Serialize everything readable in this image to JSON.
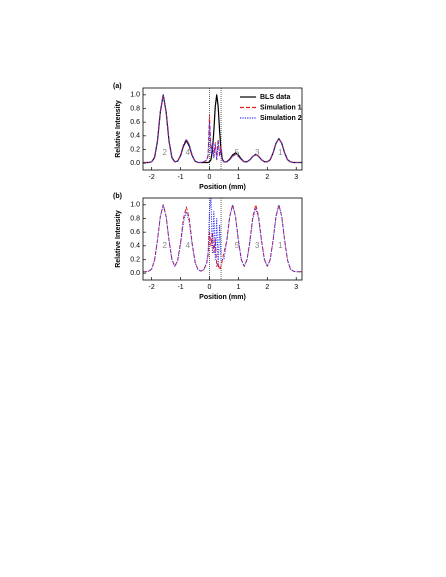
{
  "chart_data": [
    {
      "type": "line",
      "title": "(a)",
      "xlabel": "Position (mm)",
      "ylabel": "Relative Intensity",
      "xlim": [
        -2.3,
        3.2
      ],
      "ylim": [
        -0.1,
        1.1
      ],
      "xticks": [
        -2,
        -1,
        0,
        1,
        2,
        3
      ],
      "yticks": [
        {
          "value": 0,
          "label": "0.0"
        },
        0.2,
        0.4,
        0.6,
        0.8,
        {
          "value": 1,
          "label": "1.0"
        }
      ],
      "vlines": [
        0,
        0.4
      ],
      "legend": "upper right",
      "annotations": [
        "2",
        "4",
        "5",
        "3",
        "1"
      ],
      "x": [
        -2.3,
        -2.2,
        -2.1,
        -2.0,
        -1.9,
        -1.8,
        -1.7,
        -1.6,
        -1.5,
        -1.4,
        -1.3,
        -1.2,
        -1.1,
        -1.0,
        -0.9,
        -0.8,
        -0.7,
        -0.6,
        -0.5,
        -0.4,
        -0.3,
        -0.2,
        -0.1,
        -0.05,
        0,
        0.05,
        0.1,
        0.15,
        0.2,
        0.25,
        0.3,
        0.35,
        0.4,
        0.45,
        0.5,
        0.6,
        0.7,
        0.8,
        0.9,
        1.0,
        1.1,
        1.2,
        1.3,
        1.4,
        1.5,
        1.6,
        1.7,
        1.8,
        1.9,
        2.0,
        2.1,
        2.2,
        2.3,
        2.4,
        2.5,
        2.6,
        2.7,
        2.8,
        2.9,
        3.0,
        3.1,
        3.2
      ],
      "series": [
        {
          "name": "BLS data",
          "color": "#000000",
          "dash": "solid",
          "values": [
            0.01,
            0.01,
            0.01,
            0.02,
            0.08,
            0.32,
            0.75,
            1.0,
            0.75,
            0.32,
            0.08,
            0.02,
            0.03,
            0.11,
            0.25,
            0.33,
            0.25,
            0.11,
            0.03,
            0.01,
            0.01,
            0.01,
            0.01,
            0.01,
            0.02,
            0.05,
            0.18,
            0.47,
            0.83,
            1.0,
            0.83,
            0.47,
            0.18,
            0.05,
            0.02,
            0.02,
            0.06,
            0.12,
            0.15,
            0.12,
            0.06,
            0.02,
            0.02,
            0.05,
            0.1,
            0.13,
            0.1,
            0.05,
            0.02,
            0.02,
            0.05,
            0.15,
            0.29,
            0.36,
            0.29,
            0.15,
            0.05,
            0.02,
            0.01,
            0.01,
            0.01,
            0.01
          ]
        },
        {
          "name": "Simulation 1",
          "color": "#e41a1c",
          "dash": "dashed",
          "values": [
            0.01,
            0.01,
            0.01,
            0.02,
            0.09,
            0.33,
            0.76,
            1.0,
            0.76,
            0.33,
            0.09,
            0.02,
            0.03,
            0.12,
            0.27,
            0.35,
            0.27,
            0.12,
            0.03,
            0.01,
            0.01,
            0.02,
            0.04,
            0.1,
            0.7,
            0.2,
            0.25,
            0.1,
            0.3,
            0.05,
            0.35,
            0.1,
            0.25,
            0.05,
            0.02,
            0.02,
            0.05,
            0.1,
            0.13,
            0.1,
            0.05,
            0.02,
            0.02,
            0.05,
            0.1,
            0.13,
            0.1,
            0.05,
            0.02,
            0.02,
            0.05,
            0.15,
            0.29,
            0.36,
            0.29,
            0.15,
            0.05,
            0.02,
            0.01,
            0.01,
            0.01,
            0.01
          ]
        },
        {
          "name": "Simulation 2",
          "color": "#3333ff",
          "dash": "dotted",
          "values": [
            0.01,
            0.01,
            0.01,
            0.02,
            0.09,
            0.33,
            0.76,
            1.0,
            0.76,
            0.33,
            0.09,
            0.02,
            0.03,
            0.12,
            0.27,
            0.35,
            0.27,
            0.12,
            0.03,
            0.01,
            0.01,
            0.02,
            0.05,
            0.12,
            0.6,
            0.15,
            0.3,
            0.08,
            0.28,
            0.06,
            0.32,
            0.12,
            0.22,
            0.06,
            0.02,
            0.02,
            0.05,
            0.1,
            0.13,
            0.1,
            0.05,
            0.02,
            0.02,
            0.05,
            0.1,
            0.13,
            0.1,
            0.05,
            0.02,
            0.02,
            0.05,
            0.15,
            0.29,
            0.36,
            0.29,
            0.15,
            0.05,
            0.02,
            0.01,
            0.01,
            0.01,
            0.01
          ]
        }
      ]
    },
    {
      "type": "line",
      "title": "(b)",
      "xlabel": "Position (mm)",
      "ylabel": "Relative Intensity",
      "xlim": [
        -2.3,
        3.2
      ],
      "ylim": [
        -0.1,
        1.1
      ],
      "xticks": [
        -2,
        -1,
        0,
        1,
        2,
        3
      ],
      "yticks": [
        {
          "value": 0,
          "label": "0.0"
        },
        0.2,
        0.4,
        0.6,
        0.8,
        {
          "value": 1,
          "label": "1.0"
        }
      ],
      "vlines": [
        0,
        0.4
      ],
      "annotations": [
        "2",
        "4",
        "5",
        "3",
        "1"
      ],
      "x": [
        -2.3,
        -2.2,
        -2.1,
        -2.0,
        -1.9,
        -1.8,
        -1.7,
        -1.6,
        -1.5,
        -1.4,
        -1.3,
        -1.2,
        -1.1,
        -1.0,
        -0.9,
        -0.8,
        -0.7,
        -0.6,
        -0.5,
        -0.4,
        -0.3,
        -0.2,
        -0.1,
        -0.05,
        0,
        0.05,
        0.1,
        0.15,
        0.2,
        0.25,
        0.3,
        0.35,
        0.4,
        0.45,
        0.5,
        0.6,
        0.7,
        0.8,
        0.9,
        1.0,
        1.1,
        1.2,
        1.3,
        1.4,
        1.5,
        1.6,
        1.7,
        1.8,
        1.9,
        2.0,
        2.1,
        2.2,
        2.3,
        2.4,
        2.5,
        2.6,
        2.7,
        2.8,
        2.9,
        3.0,
        3.1,
        3.2
      ],
      "series": [
        {
          "color": "#e41a1c",
          "dash": "dashed",
          "values": [
            0.02,
            0.02,
            0.03,
            0.06,
            0.19,
            0.48,
            0.83,
            1.0,
            0.83,
            0.48,
            0.2,
            0.1,
            0.19,
            0.45,
            0.8,
            0.97,
            0.8,
            0.44,
            0.17,
            0.05,
            0.03,
            0.05,
            0.14,
            0.25,
            0.6,
            0.4,
            0.6,
            0.3,
            0.5,
            0.1,
            0.15,
            0.05,
            0.1,
            0.2,
            0.3,
            0.48,
            0.83,
            1.0,
            0.83,
            0.48,
            0.2,
            0.1,
            0.2,
            0.48,
            0.83,
            1.0,
            0.83,
            0.48,
            0.2,
            0.1,
            0.2,
            0.48,
            0.83,
            1.0,
            0.83,
            0.48,
            0.19,
            0.06,
            0.03,
            0.02,
            0.02,
            0.02
          ]
        },
        {
          "color": "#3333ff",
          "dash": "dotted",
          "values": [
            0.02,
            0.02,
            0.03,
            0.06,
            0.19,
            0.48,
            0.83,
            1.0,
            0.83,
            0.48,
            0.2,
            0.1,
            0.18,
            0.43,
            0.75,
            0.9,
            0.75,
            0.42,
            0.16,
            0.05,
            0.03,
            0.05,
            0.15,
            0.3,
            0.9,
            1.1,
            0.3,
            0.9,
            0.2,
            0.8,
            0.1,
            0.7,
            0.2,
            0.2,
            0.2,
            0.48,
            0.83,
            1.0,
            0.83,
            0.48,
            0.2,
            0.1,
            0.2,
            0.46,
            0.8,
            0.95,
            0.8,
            0.46,
            0.2,
            0.1,
            0.2,
            0.48,
            0.83,
            1.0,
            0.83,
            0.48,
            0.19,
            0.06,
            0.03,
            0.02,
            0.02,
            0.02
          ]
        }
      ]
    }
  ]
}
